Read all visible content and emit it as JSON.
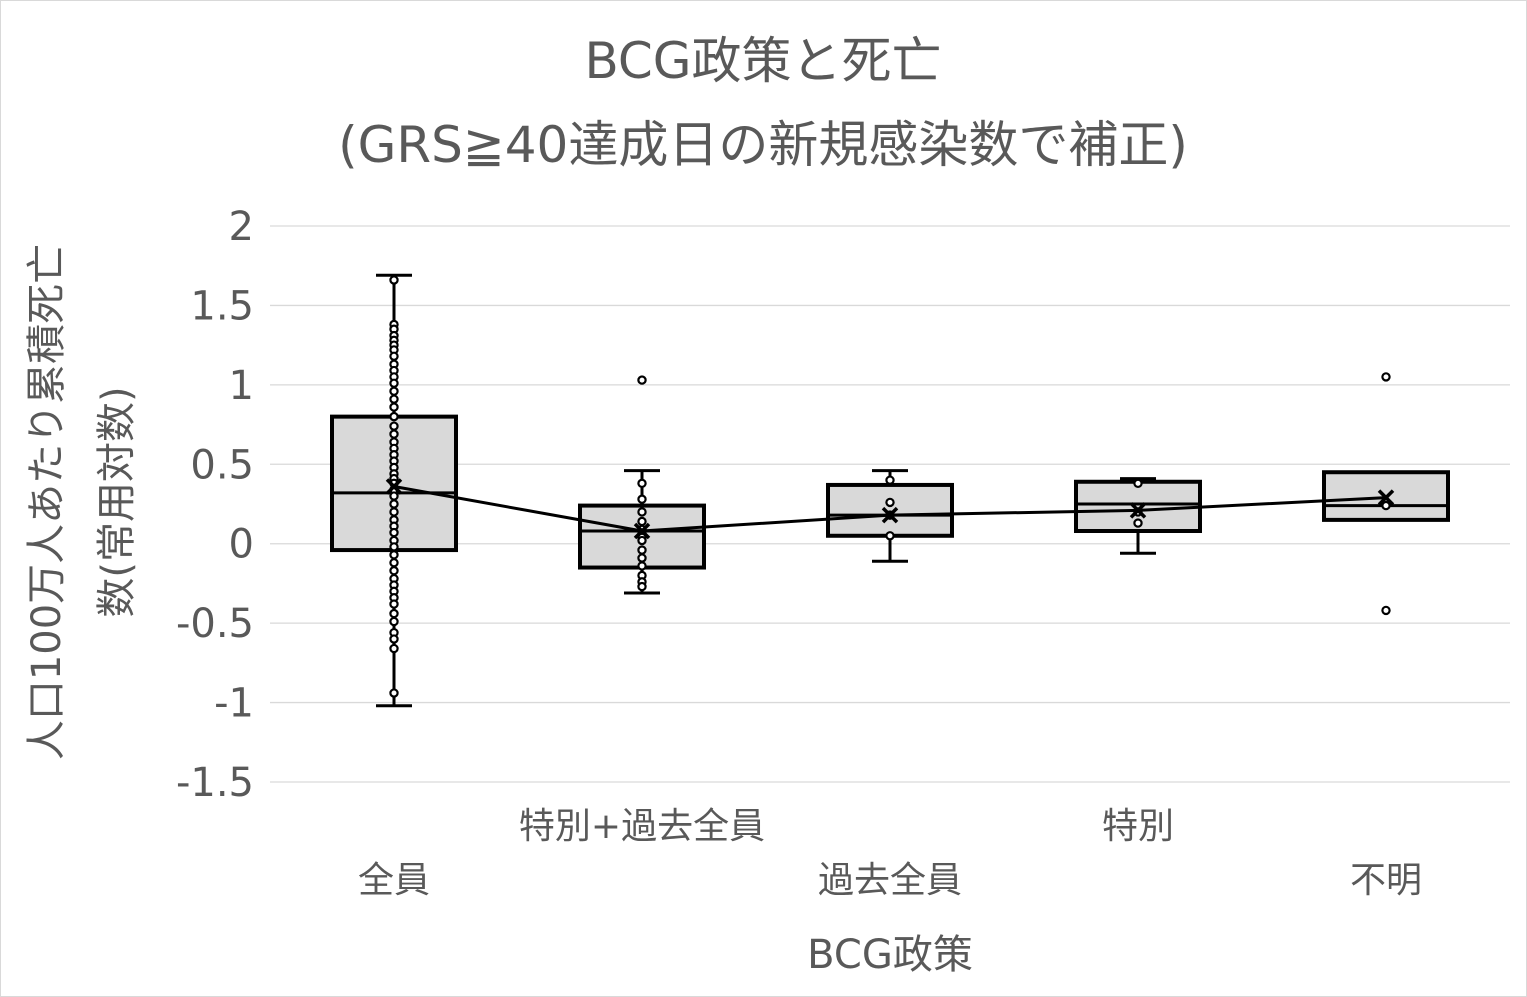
{
  "chart_data": {
    "type": "box",
    "title": [
      "BCG政策と死亡",
      "(GRS≧40達成日の新規感染数で補正)"
    ],
    "xlabel": "BCG政策",
    "ylabel": [
      "人口100万人あたり累積死亡",
      "数(常用対数)"
    ],
    "ylim": [
      -1.5,
      2
    ],
    "y_ticks": [
      {
        "value": 2,
        "label": "2"
      },
      {
        "value": 1.5,
        "label": "1.5"
      },
      {
        "value": 1,
        "label": "1"
      },
      {
        "value": 0.5,
        "label": "0.5"
      },
      {
        "value": 0,
        "label": "0"
      },
      {
        "value": -0.5,
        "label": "-0.5"
      },
      {
        "value": -1,
        "label": "-1"
      },
      {
        "value": -1.5,
        "label": "-1.5"
      }
    ],
    "grid": true,
    "legend": "none",
    "mean_line": true,
    "categories": [
      "全員",
      "特別+過去全員",
      "過去全員",
      "特別",
      "不明"
    ],
    "series": [
      {
        "category": "全員",
        "min": -1.02,
        "q1": -0.04,
        "median": 0.32,
        "q3": 0.8,
        "max": 1.69,
        "mean": 0.36,
        "points": [
          1.66,
          1.38,
          1.35,
          1.31,
          1.28,
          1.25,
          1.22,
          1.18,
          1.13,
          1.09,
          1.05,
          1.01,
          0.96,
          0.91,
          0.86,
          0.8,
          0.74,
          0.69,
          0.64,
          0.6,
          0.56,
          0.52,
          0.48,
          0.44,
          0.41,
          0.38,
          0.34,
          0.3,
          0.25,
          0.2,
          0.15,
          0.11,
          0.07,
          0.02,
          -0.02,
          -0.07,
          -0.12,
          -0.17,
          -0.22,
          -0.26,
          -0.3,
          -0.34,
          -0.38,
          -0.44,
          -0.49,
          -0.56,
          -0.6,
          -0.66,
          -0.94
        ],
        "outliers": []
      },
      {
        "category": "特別+過去全員",
        "min": -0.31,
        "q1": -0.15,
        "median": 0.08,
        "q3": 0.24,
        "max": 0.46,
        "mean": 0.08,
        "points": [
          0.38,
          0.28,
          0.2,
          0.14,
          0.09,
          0.06,
          0.04,
          0.02,
          -0.04,
          -0.09,
          -0.14,
          -0.2,
          -0.24,
          -0.27
        ],
        "outliers": [
          1.03
        ]
      },
      {
        "category": "過去全員",
        "min": -0.11,
        "q1": 0.05,
        "median": 0.18,
        "q3": 0.37,
        "max": 0.46,
        "mean": 0.18,
        "points": [
          0.4,
          0.26,
          0.18,
          0.05
        ],
        "outliers": []
      },
      {
        "category": "特別",
        "min": -0.06,
        "q1": 0.08,
        "median": 0.25,
        "q3": 0.39,
        "max": 0.41,
        "mean": 0.21,
        "points": [
          0.38,
          0.13,
          0.2
        ],
        "outliers": []
      },
      {
        "category": "不明",
        "min": 0.15,
        "q1": 0.15,
        "median": 0.24,
        "q3": 0.45,
        "max": 0.45,
        "mean": 0.29,
        "points": [
          0.24
        ],
        "outliers": [
          1.05,
          -0.42
        ]
      }
    ]
  }
}
